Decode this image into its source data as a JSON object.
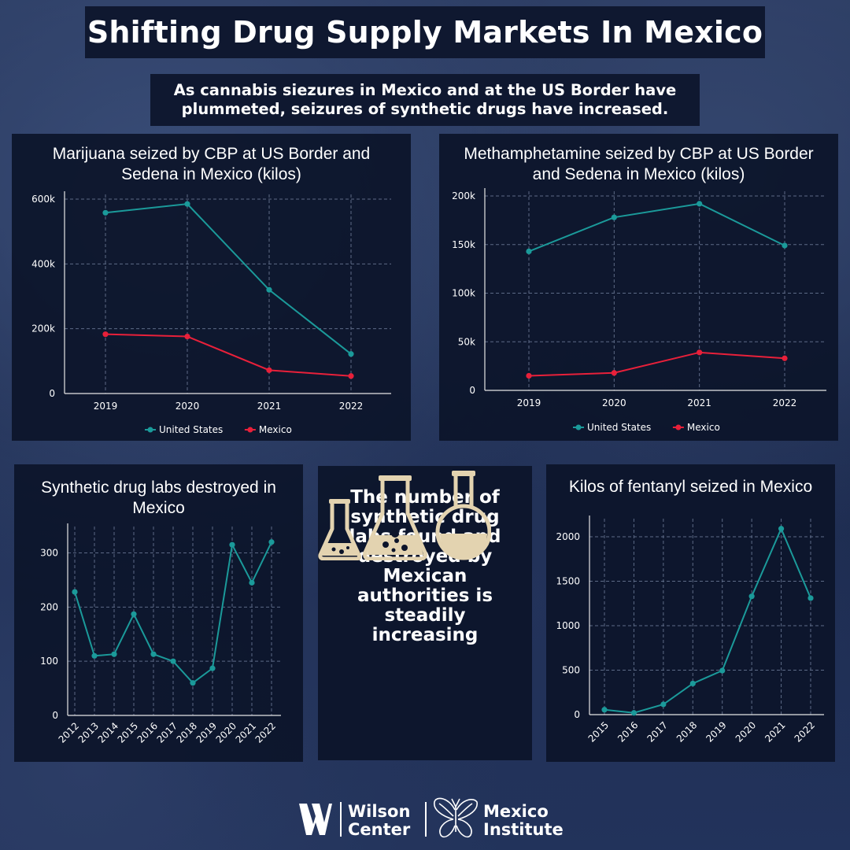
{
  "header": {
    "title": "Shifting Drug Supply Markets In Mexico",
    "subtitle": "As cannabis siezures in Mexico and at the US Border have plummeted, seizures of synthetic drugs have increased."
  },
  "callout": {
    "text": "The number of synthetic drug labs found and destroyed by Mexican authorities is steadily increasing"
  },
  "footer": {
    "logo1_line1": "Wilson",
    "logo1_line2": "Center",
    "logo2_line1": "Mexico",
    "logo2_line2": "Institute"
  },
  "colors": {
    "us": "#1b9a9a",
    "mexico": "#e8203a",
    "panel": "#0c142a",
    "flask": "#e3d3b0"
  },
  "chart_data": [
    {
      "type": "line",
      "title": "Marijuana seized by CBP at US Border and Sedena in Mexico (kilos)",
      "categories": [
        "2019",
        "2020",
        "2021",
        "2022"
      ],
      "series": [
        {
          "name": "United States",
          "values": [
            558000,
            585000,
            320000,
            122000
          ]
        },
        {
          "name": "Mexico",
          "values": [
            183000,
            176000,
            72000,
            54000
          ]
        }
      ],
      "ylim": [
        0,
        600000
      ],
      "yticks": [
        0,
        200000,
        400000,
        600000
      ],
      "ytick_labels": [
        "0",
        "200k",
        "400k",
        "600k"
      ],
      "legend": "bottom",
      "grid": true
    },
    {
      "type": "line",
      "title": "Methamphetamine seized by CBP at US Border and Sedena in Mexico (kilos)",
      "categories": [
        "2019",
        "2020",
        "2021",
        "2022"
      ],
      "series": [
        {
          "name": "United States",
          "values": [
            143000,
            178000,
            192000,
            149000
          ]
        },
        {
          "name": "Mexico",
          "values": [
            15000,
            18000,
            39000,
            33000
          ]
        }
      ],
      "ylim": [
        0,
        200000
      ],
      "yticks": [
        0,
        50000,
        100000,
        150000,
        200000
      ],
      "ytick_labels": [
        "0",
        "50k",
        "100k",
        "150k",
        "200k"
      ],
      "legend": "bottom",
      "grid": true
    },
    {
      "type": "line",
      "title": "Synthetic drug labs destroyed in Mexico",
      "categories": [
        "2012",
        "2013",
        "2014",
        "2015",
        "2016",
        "2017",
        "2018",
        "2019",
        "2020",
        "2021",
        "2022"
      ],
      "series": [
        {
          "values": [
            228,
            110,
            113,
            187,
            113,
            100,
            60,
            87,
            315,
            245,
            320
          ]
        }
      ],
      "ylim": [
        0,
        340
      ],
      "yticks": [
        0,
        100,
        200,
        300
      ],
      "ytick_labels": [
        "0",
        "100",
        "200",
        "300"
      ],
      "grid": true
    },
    {
      "type": "line",
      "title": "Kilos of fentanyl seized in Mexico",
      "categories": [
        "2015",
        "2016",
        "2017",
        "2018",
        "2019",
        "2020",
        "2021",
        "2022"
      ],
      "series": [
        {
          "values": [
            55,
            20,
            115,
            350,
            495,
            1330,
            2090,
            1310
          ]
        }
      ],
      "ylim": [
        0,
        2150
      ],
      "yticks": [
        0,
        500,
        1000,
        1500,
        2000
      ],
      "ytick_labels": [
        "0",
        "500",
        "1000",
        "1500",
        "2000"
      ],
      "grid": true
    }
  ]
}
